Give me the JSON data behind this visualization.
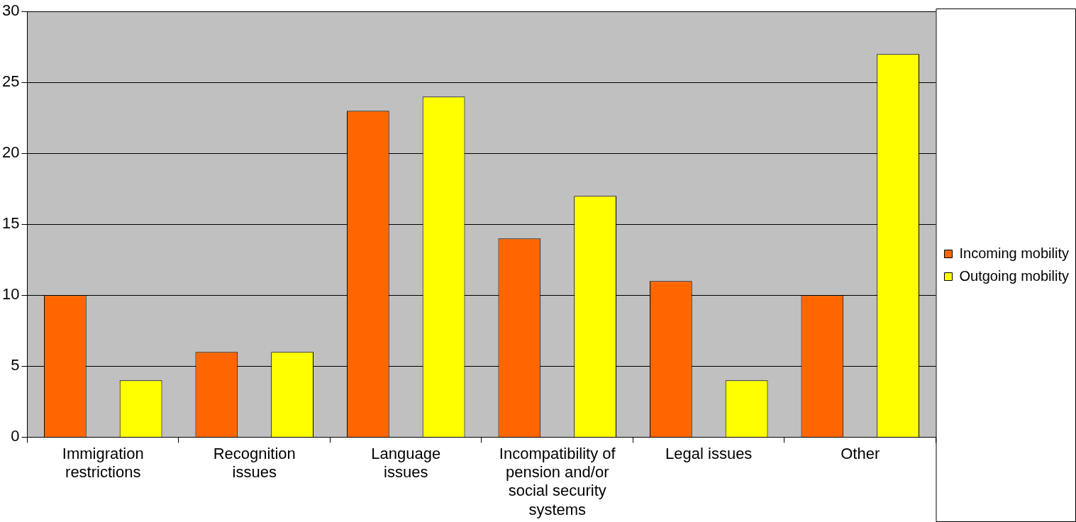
{
  "chart_data": {
    "type": "bar",
    "categories": [
      "Immigration restrictions",
      "Recognition issues",
      "Language issues",
      "Incompatibility of pension and/or social security systems",
      "Legal issues",
      "Other"
    ],
    "series": [
      {
        "name": "Incoming mobility",
        "color": "#ff6600",
        "values": [
          10,
          6,
          23,
          14,
          11,
          10
        ]
      },
      {
        "name": "Outgoing mobility",
        "color": "#ffff00",
        "values": [
          4,
          6,
          24,
          17,
          4,
          27
        ]
      }
    ],
    "ylim": [
      0,
      30
    ],
    "yticks": [
      0,
      5,
      10,
      15,
      20,
      25,
      30
    ],
    "grid": "y",
    "legend": "right"
  }
}
